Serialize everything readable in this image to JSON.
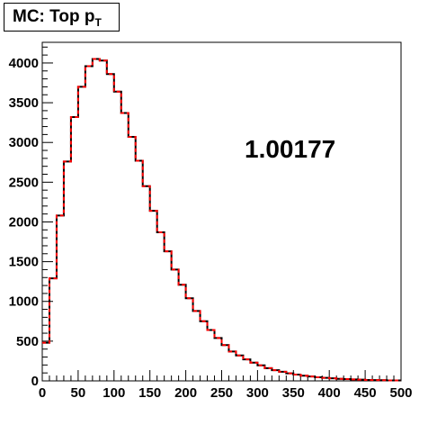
{
  "title": {
    "main": "MC: Top p",
    "sub": "T"
  },
  "annotation": "1.00177",
  "chart_data": {
    "type": "step-histogram",
    "title": "MC: Top pT",
    "xlabel": "",
    "ylabel": "",
    "xlim": [
      0,
      500
    ],
    "ylim": [
      0,
      4260
    ],
    "bin_width": 10,
    "x_ticks": [
      0,
      50,
      100,
      150,
      200,
      250,
      300,
      350,
      400,
      450,
      500
    ],
    "y_ticks": [
      0,
      500,
      1000,
      1500,
      2000,
      2500,
      3000,
      3500,
      4000
    ],
    "series": [
      {
        "color": "#000000",
        "style": "solid",
        "values": [
          480,
          1290,
          2080,
          2760,
          3320,
          3700,
          3960,
          4050,
          4030,
          3860,
          3640,
          3370,
          3070,
          2770,
          2450,
          2140,
          1870,
          1630,
          1400,
          1210,
          1040,
          880,
          750,
          640,
          540,
          450,
          370,
          320,
          270,
          230,
          195,
          160,
          135,
          115,
          95,
          80,
          65,
          55,
          45,
          38,
          32,
          26,
          22,
          18,
          15,
          12,
          10,
          8,
          6,
          5
        ]
      },
      {
        "color": "#ff0000",
        "style": "dashed",
        "values": [
          480,
          1290,
          2080,
          2760,
          3320,
          3700,
          3960,
          4050,
          4030,
          3860,
          3640,
          3370,
          3070,
          2770,
          2450,
          2140,
          1870,
          1630,
          1400,
          1210,
          1040,
          880,
          750,
          640,
          540,
          450,
          370,
          320,
          270,
          230,
          195,
          160,
          135,
          115,
          95,
          80,
          65,
          55,
          45,
          38,
          32,
          26,
          22,
          18,
          15,
          12,
          10,
          8,
          6,
          5
        ]
      }
    ],
    "grid": false,
    "legend": "none"
  }
}
